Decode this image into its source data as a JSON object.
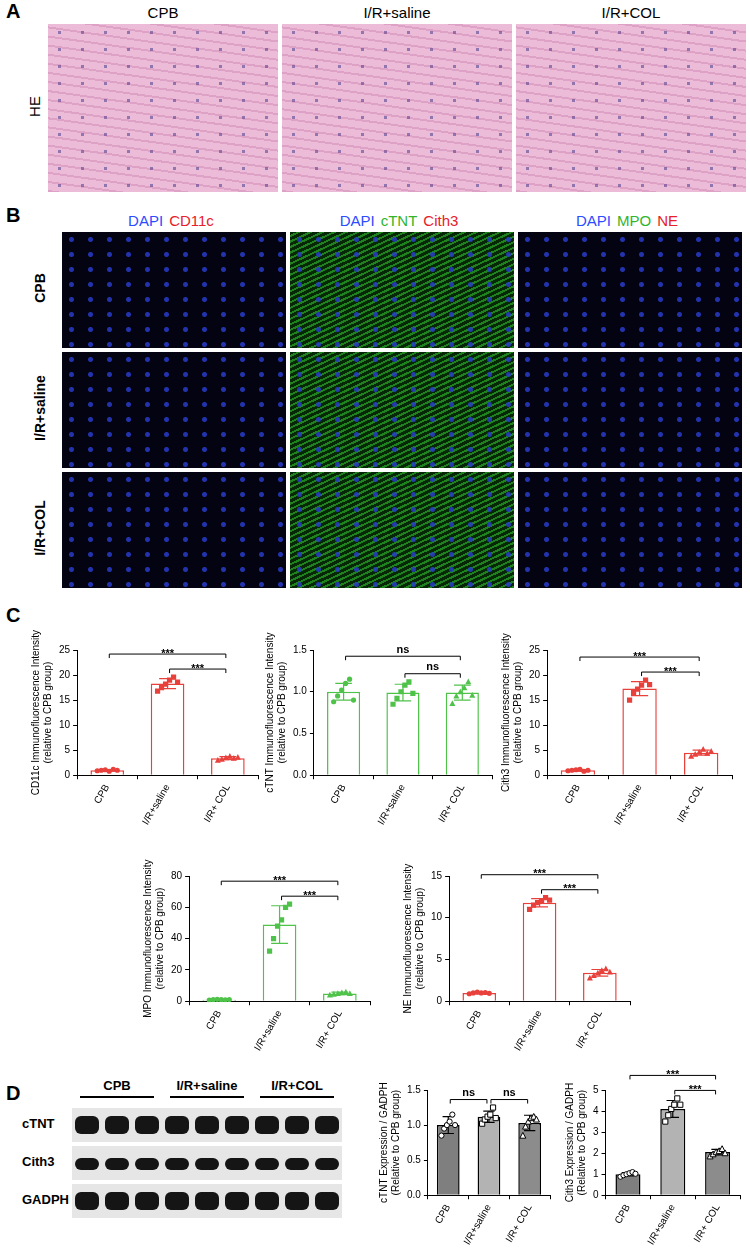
{
  "panel_labels": [
    "A",
    "B",
    "C",
    "D"
  ],
  "panel_a": {
    "columns": [
      "CPB",
      "I/R+saline",
      "I/R+COL"
    ],
    "row_label": "HE"
  },
  "panel_b": {
    "column_headers": [
      [
        "DAPI",
        "CD11c"
      ],
      [
        "DAPI",
        "cTNT",
        "Cith3"
      ],
      [
        "DAPI",
        "MPO",
        "NE"
      ]
    ],
    "row_labels": [
      "CPB",
      "I/R+saline",
      "I/R+COL"
    ]
  },
  "panel_d_blot": {
    "groups": [
      "CPB",
      "I/R+saline",
      "I/R+COL"
    ],
    "rows": [
      "cTNT",
      "Cith3",
      "GADPH"
    ]
  },
  "chart_data": [
    {
      "type": "bar",
      "y_label": [
        "CD11c Immunofluorescence Intensity",
        "(relative to CPB group)"
      ],
      "categories": [
        "CPB",
        "I/R+saline",
        "I/R+ COL"
      ],
      "values": [
        1.0,
        18.3,
        3.4
      ],
      "errors": [
        0.15,
        1.0,
        0.3
      ],
      "points": [
        [
          0.9,
          1.0,
          1.1,
          0.8,
          1.2,
          1.0
        ],
        [
          16.8,
          17.5,
          18.2,
          19.0,
          19.6,
          18.6
        ],
        [
          3.0,
          3.2,
          3.5,
          3.8,
          3.4,
          3.6
        ]
      ],
      "color": "#e8413c",
      "ylim": [
        0,
        25
      ],
      "yticks": [
        0,
        5,
        10,
        15,
        20,
        25
      ],
      "grid": false,
      "annotations": [
        {
          "from": 0,
          "to": 2,
          "label": "***"
        },
        {
          "from": 1,
          "to": 2,
          "label": "***"
        }
      ]
    },
    {
      "type": "bar",
      "y_label": [
        "cTNT Immunofluorescence Intensity",
        "(relative to CPB group)"
      ],
      "categories": [
        "CPB",
        "I/R+saline",
        "I/R+ COL"
      ],
      "values": [
        1.0,
        0.99,
        0.99
      ],
      "errors": [
        0.1,
        0.1,
        0.09
      ],
      "points": [
        [
          0.88,
          0.95,
          1.02,
          1.1,
          1.15,
          0.9
        ],
        [
          0.85,
          0.92,
          1.0,
          1.08,
          1.12,
          0.98
        ],
        [
          0.86,
          0.95,
          1.0,
          1.05,
          1.12,
          0.96
        ]
      ],
      "color": "#4fc24a",
      "ylim": [
        0,
        1.5
      ],
      "yticks": [
        {
          "value": 0,
          "label": "0.0"
        },
        0.5,
        {
          "value": 1,
          "label": "1.0"
        },
        1.5
      ],
      "grid": false,
      "annotations": [
        {
          "from": 0,
          "to": 2,
          "label": "ns"
        },
        {
          "from": 1,
          "to": 2,
          "label": "ns"
        }
      ]
    },
    {
      "type": "bar",
      "y_label": [
        "Cith3 Immunofluorescence Intensity",
        "(relative to CPB group)"
      ],
      "categories": [
        "CPB",
        "I/R+saline",
        "I/R+ COL"
      ],
      "values": [
        1.0,
        17.3,
        4.5
      ],
      "errors": [
        0.15,
        1.4,
        0.5
      ],
      "points": [
        [
          0.9,
          1.0,
          1.1,
          1.2,
          0.8,
          1.0
        ],
        [
          15.0,
          16.5,
          17.2,
          18.0,
          19.0,
          18.1
        ],
        [
          3.8,
          4.2,
          4.6,
          5.2,
          4.4,
          4.8
        ]
      ],
      "color": "#e8413c",
      "ylim": [
        0,
        25
      ],
      "yticks": [
        0,
        5,
        10,
        15,
        20,
        25
      ],
      "grid": false,
      "annotations": [
        {
          "from": 0,
          "to": 2,
          "label": "***"
        },
        {
          "from": 1,
          "to": 2,
          "label": "***"
        }
      ]
    },
    {
      "type": "bar",
      "y_label": [
        "MPO Immunofluorescence Intensity",
        "(relative to CPB group)"
      ],
      "categories": [
        "CPB",
        "I/R+saline",
        "I/R+ COL"
      ],
      "values": [
        1.0,
        49.0,
        5.0
      ],
      "errors": [
        0.2,
        12.0,
        0.8
      ],
      "points": [
        [
          0.8,
          1.0,
          1.2,
          1.0,
          0.9,
          1.1
        ],
        [
          32.0,
          40.0,
          48.0,
          52.0,
          60.0,
          62.0
        ],
        [
          4.0,
          4.5,
          5.0,
          5.5,
          6.0,
          5.0
        ]
      ],
      "color": "#4fc24a",
      "ylim": [
        0,
        80
      ],
      "yticks": [
        0,
        20,
        40,
        60,
        80
      ],
      "grid": false,
      "annotations": [
        {
          "from": 0,
          "to": 2,
          "label": "***"
        },
        {
          "from": 1,
          "to": 2,
          "label": "***"
        }
      ]
    },
    {
      "type": "bar",
      "y_label": [
        "NE Immunofluorescence Intensity",
        "(relative to CPB group)"
      ],
      "categories": [
        "CPB",
        "I/R+saline",
        "I/R+ COL"
      ],
      "values": [
        1.0,
        11.8,
        3.4
      ],
      "errors": [
        0.08,
        0.5,
        0.4
      ],
      "points": [
        [
          0.9,
          1.0,
          1.1,
          1.0,
          1.05,
          0.95
        ],
        [
          11.0,
          11.5,
          11.8,
          12.0,
          12.4,
          12.1
        ],
        [
          2.8,
          3.1,
          3.4,
          3.7,
          3.9,
          3.5
        ]
      ],
      "color": "#e8413c",
      "ylim": [
        0,
        15
      ],
      "yticks": [
        0,
        5,
        10,
        15
      ],
      "grid": false,
      "annotations": [
        {
          "from": 0,
          "to": 2,
          "label": "***"
        },
        {
          "from": 1,
          "to": 2,
          "label": "***"
        }
      ]
    },
    {
      "type": "bar",
      "y_label": [
        "cTNT Expression / GADPH",
        "(Relative to CPB group)"
      ],
      "categories": [
        "CPB",
        "I/R+saline",
        "I/R+ COL"
      ],
      "values": [
        1.0,
        1.12,
        1.03
      ],
      "errors": [
        0.12,
        0.08,
        0.11
      ],
      "points": [
        [
          0.85,
          0.95,
          1.0,
          1.05,
          1.15,
          1.0
        ],
        [
          1.02,
          1.08,
          1.12,
          1.15,
          1.25,
          1.1
        ],
        [
          0.85,
          0.98,
          1.05,
          1.1,
          1.12,
          1.08
        ]
      ],
      "colors": [
        "#7f7f7f",
        "#b3b3b3",
        "#8c8c8c"
      ],
      "ylim": [
        0,
        1.5
      ],
      "yticks": [
        {
          "value": 0,
          "label": "0.0"
        },
        0.5,
        {
          "value": 1,
          "label": "1.0"
        },
        1.5
      ],
      "grid": false,
      "annotations": [
        {
          "from": 0,
          "to": 1,
          "label": "ns"
        },
        {
          "from": 1,
          "to": 2,
          "label": "ns"
        }
      ]
    },
    {
      "type": "bar",
      "y_label": [
        "Cith3 Expression / GADPH",
        "(Relative to CPB group)"
      ],
      "categories": [
        "CPB",
        "I/R+saline",
        "I/R+ COL"
      ],
      "values": [
        1.0,
        4.1,
        2.05
      ],
      "errors": [
        0.08,
        0.4,
        0.13
      ],
      "points": [
        [
          0.88,
          0.95,
          1.0,
          1.05,
          1.1,
          1.02
        ],
        [
          3.5,
          3.8,
          4.1,
          4.3,
          4.6,
          4.3
        ],
        [
          1.85,
          1.95,
          2.05,
          2.1,
          2.2,
          2.0
        ]
      ],
      "colors": [
        "#7f7f7f",
        "#b3b3b3",
        "#8c8c8c"
      ],
      "ylim": [
        0,
        5
      ],
      "yticks": [
        0,
        1,
        2,
        3,
        4,
        5
      ],
      "grid": false,
      "annotations": [
        {
          "from": 0,
          "to": 2,
          "label": "***"
        },
        {
          "from": 1,
          "to": 2,
          "label": "***"
        }
      ]
    }
  ]
}
